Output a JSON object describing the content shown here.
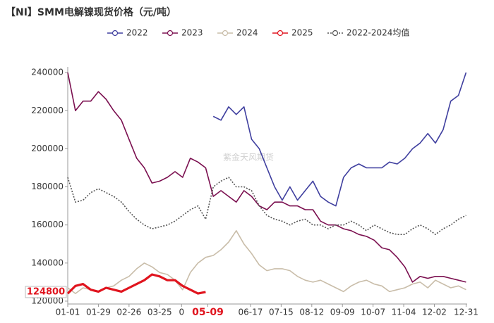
{
  "chart_data": {
    "type": "line",
    "title": "【NI】SMM电解镍现货价格（元/吨）",
    "watermark": "紫金天风期货",
    "last_value_label": "124800",
    "x": [
      0,
      7,
      14,
      21,
      28,
      35,
      42,
      49,
      56,
      63,
      70,
      77,
      84,
      91,
      98,
      105,
      112,
      119,
      126,
      133,
      140,
      147,
      154,
      161,
      168,
      175,
      182,
      189,
      196,
      203,
      210,
      217,
      224,
      231,
      238,
      245,
      252,
      259,
      266,
      273,
      280,
      287,
      294,
      301,
      308,
      315,
      322,
      329,
      336,
      343,
      350,
      357,
      364
    ],
    "xlim": [
      0,
      365
    ],
    "xticks": [
      {
        "value": 0,
        "label": "01-01"
      },
      {
        "value": 28,
        "label": "01-29"
      },
      {
        "value": 56,
        "label": "02-26"
      },
      {
        "value": 84,
        "label": "03-25"
      },
      {
        "value": 104,
        "label": "0"
      },
      {
        "value": 128,
        "label": "05-09"
      },
      {
        "value": 167,
        "label": "06-17"
      },
      {
        "value": 195,
        "label": "07-15"
      },
      {
        "value": 223,
        "label": "08-12"
      },
      {
        "value": 251,
        "label": "09-09"
      },
      {
        "value": 279,
        "label": "10-07"
      },
      {
        "value": 307,
        "label": "11-04"
      },
      {
        "value": 335,
        "label": "12-02"
      },
      {
        "value": 364,
        "label": "12-31"
      }
    ],
    "xtick_highlight": 5,
    "ylim": [
      118500,
      243000
    ],
    "yticks": [
      120000,
      140000,
      160000,
      180000,
      200000,
      220000,
      240000
    ],
    "series": [
      {
        "name": "2022",
        "color": "#3f3f9f",
        "dash": false,
        "width": 1.6,
        "values": [
          null,
          null,
          null,
          null,
          null,
          null,
          null,
          null,
          null,
          null,
          null,
          null,
          null,
          null,
          null,
          null,
          null,
          null,
          null,
          217000,
          215000,
          222000,
          218000,
          222000,
          205000,
          200000,
          190000,
          180000,
          173000,
          180000,
          173000,
          178000,
          183000,
          175000,
          172000,
          170000,
          185000,
          190000,
          192000,
          190000,
          190000,
          190000,
          193000,
          192000,
          195000,
          200000,
          203000,
          208000,
          203000,
          210000,
          225000,
          228000,
          240000
        ]
      },
      {
        "name": "2023",
        "color": "#7b1050",
        "dash": false,
        "width": 1.6,
        "values": [
          240000,
          220000,
          225000,
          225000,
          230000,
          226000,
          220000,
          215000,
          205000,
          195000,
          190000,
          182000,
          183000,
          185000,
          188000,
          185000,
          195000,
          193000,
          190000,
          175000,
          178000,
          175000,
          172000,
          178000,
          175000,
          170000,
          168000,
          172000,
          172000,
          170000,
          170000,
          168000,
          168000,
          162000,
          160000,
          160000,
          158000,
          157000,
          155000,
          154000,
          152000,
          148000,
          147000,
          143000,
          138000,
          130000,
          133000,
          132000,
          133000,
          133000,
          132000,
          131000,
          130000
        ]
      },
      {
        "name": "2024",
        "color": "#c9bda9",
        "dash": false,
        "width": 1.6,
        "values": [
          127000,
          124000,
          127000,
          126000,
          125000,
          127000,
          128000,
          131000,
          133000,
          137000,
          140000,
          138000,
          135000,
          134000,
          131000,
          126000,
          135000,
          140000,
          143000,
          144000,
          147000,
          151000,
          157000,
          150000,
          145000,
          139000,
          136000,
          137000,
          137000,
          136000,
          133000,
          131000,
          130000,
          131000,
          129000,
          127000,
          125000,
          128000,
          130000,
          131000,
          129000,
          128000,
          125000,
          126000,
          127000,
          129000,
          130000,
          127000,
          131000,
          129000,
          127000,
          128000,
          126000
        ]
      },
      {
        "name": "2025",
        "color": "#e0141e",
        "dash": false,
        "width": 3.2,
        "values": [
          124000,
          128000,
          129000,
          126000,
          125000,
          127000,
          126000,
          125000,
          127000,
          129000,
          131000,
          134000,
          133000,
          131000,
          131000,
          128000,
          126000,
          124000,
          124800,
          null,
          null,
          null,
          null,
          null,
          null,
          null,
          null,
          null,
          null,
          null,
          null,
          null,
          null,
          null,
          null,
          null,
          null,
          null,
          null,
          null,
          null,
          null,
          null,
          null,
          null,
          null,
          null,
          null,
          null,
          null,
          null,
          null,
          null
        ]
      },
      {
        "name": "2022-2024均值",
        "color": "#555555",
        "dash": true,
        "width": 1.6,
        "values": [
          185000,
          172000,
          173000,
          177000,
          179000,
          177000,
          175000,
          172000,
          167000,
          163000,
          160000,
          158000,
          159000,
          160000,
          162000,
          165000,
          168000,
          170000,
          163000,
          180000,
          183000,
          185000,
          180000,
          180000,
          178000,
          170000,
          165000,
          163000,
          162000,
          160000,
          162000,
          163000,
          160000,
          160000,
          158000,
          160000,
          160000,
          162000,
          160000,
          157000,
          160000,
          158000,
          156000,
          155000,
          155000,
          158000,
          160000,
          158000,
          155000,
          158000,
          160000,
          163000,
          165000
        ]
      }
    ]
  }
}
